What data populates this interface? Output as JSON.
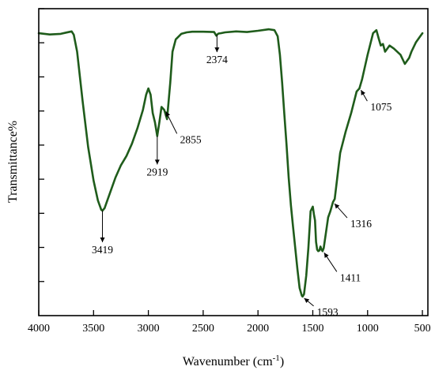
{
  "chart_data": {
    "type": "line",
    "xlabel": "Wavenumber (cm",
    "xlabel_sup": "-1",
    "xlabel_tail": ")",
    "ylabel": "Transmittance%",
    "xlim": [
      4000,
      450
    ],
    "x_reversed": true,
    "x_ticks": [
      4000,
      3500,
      3000,
      2500,
      2000,
      1500,
      1000,
      500
    ],
    "y_tick_count": 9,
    "y_tick_labels_shown": false,
    "grid": false,
    "legend": "none",
    "color": "#1f5c1b",
    "series": [
      {
        "x": [
          4000,
          3900,
          3800,
          3750,
          3700,
          3680,
          3650,
          3600,
          3550,
          3500,
          3460,
          3430,
          3419,
          3400,
          3350,
          3300,
          3250,
          3200,
          3150,
          3100,
          3050,
          3020,
          3000,
          2980,
          2960,
          2940,
          2919,
          2900,
          2880,
          2855,
          2830,
          2800,
          2780,
          2750,
          2700,
          2650,
          2600,
          2500,
          2400,
          2380,
          2374,
          2360,
          2340,
          2300,
          2200,
          2100,
          2000,
          1900,
          1850,
          1820,
          1800,
          1780,
          1760,
          1740,
          1720,
          1700,
          1680,
          1660,
          1640,
          1620,
          1600,
          1593,
          1580,
          1560,
          1540,
          1520,
          1500,
          1490,
          1480,
          1470,
          1460,
          1450,
          1440,
          1430,
          1420,
          1411,
          1400,
          1380,
          1360,
          1340,
          1316,
          1300,
          1280,
          1250,
          1200,
          1150,
          1100,
          1075,
          1050,
          1000,
          950,
          920,
          900,
          880,
          860,
          840,
          820,
          800,
          760,
          700,
          660,
          620,
          600,
          560,
          520,
          500
        ],
        "y": [
          92,
          91.6,
          91.8,
          92.2,
          92.6,
          91.5,
          86,
          70,
          55,
          44,
          37.5,
          34.5,
          34.2,
          35,
          40,
          45,
          49,
          52,
          56,
          61,
          67,
          72,
          74,
          72,
          66,
          63,
          58.5,
          63,
          68,
          67,
          64,
          76,
          86,
          90,
          91.8,
          92.3,
          92.5,
          92.5,
          92.4,
          91.2,
          91.5,
          91.9,
          92,
          92.3,
          92.6,
          92.4,
          92.8,
          93.3,
          93,
          91,
          85,
          76,
          66,
          56,
          45,
          36,
          29,
          22,
          15,
          9,
          6.5,
          6.2,
          7,
          13,
          22,
          34,
          35.5,
          33,
          31,
          24,
          21.5,
          21,
          21.2,
          22.5,
          21.5,
          21,
          22,
          27,
          32,
          34,
          37,
          38,
          44,
          53,
          60,
          66,
          73,
          74,
          77,
          85,
          92,
          93,
          90.5,
          88,
          88.5,
          86,
          87,
          88,
          87,
          85,
          82,
          84,
          86,
          89,
          91,
          92
        ]
      }
    ],
    "annotations": [
      {
        "label": "3419",
        "x": 3419,
        "y": 34.2
      },
      {
        "label": "2919",
        "x": 2919,
        "y": 58.5
      },
      {
        "label": "2855",
        "x": 2855,
        "y": 67
      },
      {
        "label": "2374",
        "x": 2374,
        "y": 91.5
      },
      {
        "label": "1593",
        "x": 1593,
        "y": 6.2
      },
      {
        "label": "1411",
        "x": 1411,
        "y": 21
      },
      {
        "label": "1316",
        "x": 1316,
        "y": 37
      },
      {
        "label": "1075",
        "x": 1075,
        "y": 74
      }
    ]
  }
}
